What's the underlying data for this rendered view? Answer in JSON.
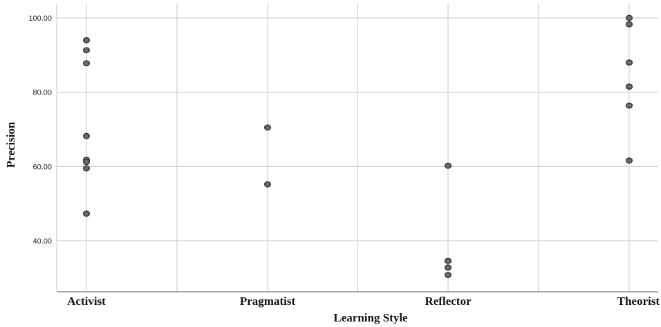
{
  "chart_data": {
    "type": "scatter",
    "title": "",
    "xlabel": "Learning Style",
    "ylabel": "Precision",
    "categories": [
      "Activist",
      "Pragmatist",
      "Reflector",
      "Theorist"
    ],
    "y_ticks": [
      "40.00",
      "60.00",
      "80.00",
      "100.00"
    ],
    "ylim": [
      27,
      104
    ],
    "grid": true,
    "series": [
      {
        "points": [
          {
            "x": "Activist",
            "y": 94.0
          },
          {
            "x": "Activist",
            "y": 91.3
          },
          {
            "x": "Activist",
            "y": 87.8
          },
          {
            "x": "Activist",
            "y": 68.2
          },
          {
            "x": "Activist",
            "y": 61.8
          },
          {
            "x": "Activist",
            "y": 61.2
          },
          {
            "x": "Activist",
            "y": 59.5
          },
          {
            "x": "Activist",
            "y": 47.3
          },
          {
            "x": "Pragmatist",
            "y": 70.5
          },
          {
            "x": "Pragmatist",
            "y": 55.2
          },
          {
            "x": "Reflector",
            "y": 60.2
          },
          {
            "x": "Reflector",
            "y": 34.6
          },
          {
            "x": "Reflector",
            "y": 32.8
          },
          {
            "x": "Reflector",
            "y": 30.8
          },
          {
            "x": "Theorist",
            "y": 100.0
          },
          {
            "x": "Theorist",
            "y": 98.3
          },
          {
            "x": "Theorist",
            "y": 88.0
          },
          {
            "x": "Theorist",
            "y": 81.5
          },
          {
            "x": "Theorist",
            "y": 76.4
          },
          {
            "x": "Theorist",
            "y": 61.6
          }
        ]
      }
    ],
    "colors": {
      "marker_fill": "#6a6a6a",
      "marker_stroke": "#2e2e2e",
      "grid": "#d2d2d2"
    }
  }
}
